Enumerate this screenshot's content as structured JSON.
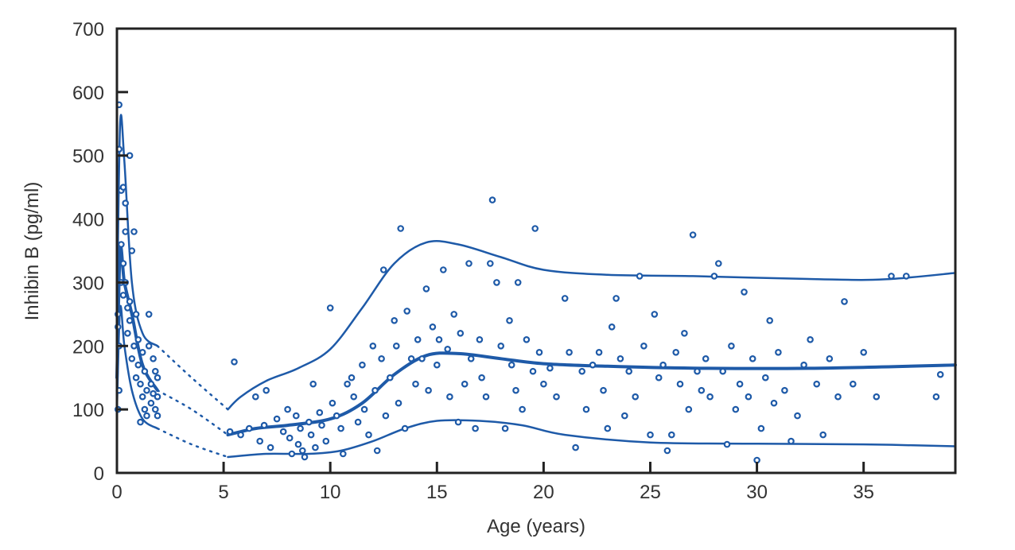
{
  "chart_data": {
    "type": "scatter",
    "title": "",
    "xlabel": "Age (years)",
    "ylabel": "Inhibin B (pg/ml)",
    "xlim": [
      0,
      39.3
    ],
    "ylim": [
      0,
      700
    ],
    "xticks": [
      0,
      5,
      10,
      15,
      20,
      25,
      30,
      35
    ],
    "yticks": [
      0,
      100,
      200,
      300,
      400,
      500,
      600,
      700
    ],
    "grid": false,
    "colors": {
      "series": "#1e5aa8",
      "axis": "#222222",
      "text": "#333333"
    },
    "points": [
      [
        0.1,
        580
      ],
      [
        0.1,
        510
      ],
      [
        0.2,
        445
      ],
      [
        0.3,
        450
      ],
      [
        0.4,
        425
      ],
      [
        0.6,
        500
      ],
      [
        0.7,
        350
      ],
      [
        0.8,
        380
      ],
      [
        0.05,
        250
      ],
      [
        0.1,
        200
      ],
      [
        0.1,
        130
      ],
      [
        0.2,
        300
      ],
      [
        0.2,
        360
      ],
      [
        0.3,
        330
      ],
      [
        0.3,
        280
      ],
      [
        0.4,
        300
      ],
      [
        0.5,
        260
      ],
      [
        0.5,
        220
      ],
      [
        0.6,
        240
      ],
      [
        0.7,
        180
      ],
      [
        0.8,
        200
      ],
      [
        0.9,
        150
      ],
      [
        1.0,
        170
      ],
      [
        1.1,
        140
      ],
      [
        1.2,
        120
      ],
      [
        1.3,
        160
      ],
      [
        1.4,
        130
      ],
      [
        1.5,
        250
      ],
      [
        1.6,
        110
      ],
      [
        1.7,
        180
      ],
      [
        1.8,
        100
      ],
      [
        1.9,
        90
      ],
      [
        1.0,
        210
      ],
      [
        1.2,
        190
      ],
      [
        1.4,
        90
      ],
      [
        1.6,
        140
      ],
      [
        1.8,
        160
      ],
      [
        1.9,
        120
      ],
      [
        0.9,
        250
      ],
      [
        1.3,
        100
      ],
      [
        0.05,
        100
      ],
      [
        0.05,
        230
      ],
      [
        0.4,
        380
      ],
      [
        0.6,
        270
      ],
      [
        1.1,
        80
      ],
      [
        1.5,
        200
      ],
      [
        1.7,
        125
      ],
      [
        1.9,
        150
      ],
      [
        5.5,
        175
      ],
      [
        5.3,
        65
      ],
      [
        5.8,
        60
      ],
      [
        6.2,
        70
      ],
      [
        6.5,
        120
      ],
      [
        6.7,
        50
      ],
      [
        6.9,
        75
      ],
      [
        7.0,
        130
      ],
      [
        7.2,
        40
      ],
      [
        7.5,
        85
      ],
      [
        7.8,
        65
      ],
      [
        8.0,
        100
      ],
      [
        8.1,
        55
      ],
      [
        8.2,
        30
      ],
      [
        8.4,
        90
      ],
      [
        8.5,
        45
      ],
      [
        8.6,
        70
      ],
      [
        8.7,
        35
      ],
      [
        8.8,
        25
      ],
      [
        9.0,
        80
      ],
      [
        9.1,
        60
      ],
      [
        9.2,
        140
      ],
      [
        9.3,
        40
      ],
      [
        9.5,
        95
      ],
      [
        9.6,
        75
      ],
      [
        9.8,
        50
      ],
      [
        10.0,
        260
      ],
      [
        10.1,
        110
      ],
      [
        10.3,
        90
      ],
      [
        10.5,
        70
      ],
      [
        10.6,
        30
      ],
      [
        10.8,
        140
      ],
      [
        11.0,
        150
      ],
      [
        11.1,
        120
      ],
      [
        11.3,
        80
      ],
      [
        11.5,
        170
      ],
      [
        11.6,
        100
      ],
      [
        11.8,
        60
      ],
      [
        12.0,
        200
      ],
      [
        12.1,
        130
      ],
      [
        12.2,
        35
      ],
      [
        12.4,
        180
      ],
      [
        12.5,
        320
      ],
      [
        12.6,
        90
      ],
      [
        12.8,
        150
      ],
      [
        13.0,
        240
      ],
      [
        13.1,
        200
      ],
      [
        13.2,
        110
      ],
      [
        13.3,
        385
      ],
      [
        13.5,
        70
      ],
      [
        13.6,
        255
      ],
      [
        13.8,
        180
      ],
      [
        14.0,
        140
      ],
      [
        14.1,
        210
      ],
      [
        14.3,
        180
      ],
      [
        14.5,
        290
      ],
      [
        14.6,
        130
      ],
      [
        14.8,
        230
      ],
      [
        15.0,
        170
      ],
      [
        15.1,
        210
      ],
      [
        15.3,
        320
      ],
      [
        15.5,
        195
      ],
      [
        15.6,
        120
      ],
      [
        15.8,
        250
      ],
      [
        16.0,
        80
      ],
      [
        16.1,
        220
      ],
      [
        16.3,
        140
      ],
      [
        16.5,
        330
      ],
      [
        16.6,
        180
      ],
      [
        16.8,
        70
      ],
      [
        17.0,
        210
      ],
      [
        17.1,
        150
      ],
      [
        17.3,
        120
      ],
      [
        17.5,
        330
      ],
      [
        17.6,
        430
      ],
      [
        17.8,
        300
      ],
      [
        18.0,
        200
      ],
      [
        18.2,
        70
      ],
      [
        18.4,
        240
      ],
      [
        18.5,
        170
      ],
      [
        18.7,
        130
      ],
      [
        18.8,
        300
      ],
      [
        19.0,
        100
      ],
      [
        19.2,
        210
      ],
      [
        19.5,
        160
      ],
      [
        19.6,
        385
      ],
      [
        19.8,
        190
      ],
      [
        20.0,
        140
      ],
      [
        20.3,
        165
      ],
      [
        20.6,
        120
      ],
      [
        21.0,
        275
      ],
      [
        21.2,
        190
      ],
      [
        21.5,
        40
      ],
      [
        21.8,
        160
      ],
      [
        22.0,
        100
      ],
      [
        22.3,
        170
      ],
      [
        22.6,
        190
      ],
      [
        22.8,
        130
      ],
      [
        23.0,
        70
      ],
      [
        23.2,
        230
      ],
      [
        23.4,
        275
      ],
      [
        23.6,
        180
      ],
      [
        23.8,
        90
      ],
      [
        24.0,
        160
      ],
      [
        24.3,
        120
      ],
      [
        24.5,
        310
      ],
      [
        24.7,
        200
      ],
      [
        25.0,
        60
      ],
      [
        25.2,
        250
      ],
      [
        25.4,
        150
      ],
      [
        25.6,
        170
      ],
      [
        25.8,
        35
      ],
      [
        26.0,
        60
      ],
      [
        26.2,
        190
      ],
      [
        26.4,
        140
      ],
      [
        26.6,
        220
      ],
      [
        26.8,
        100
      ],
      [
        27.0,
        375
      ],
      [
        27.2,
        160
      ],
      [
        27.4,
        130
      ],
      [
        27.6,
        180
      ],
      [
        27.8,
        120
      ],
      [
        28.0,
        310
      ],
      [
        28.2,
        330
      ],
      [
        28.4,
        160
      ],
      [
        28.6,
        45
      ],
      [
        28.8,
        200
      ],
      [
        29.0,
        100
      ],
      [
        29.2,
        140
      ],
      [
        29.4,
        285
      ],
      [
        29.6,
        120
      ],
      [
        29.8,
        180
      ],
      [
        30.0,
        20
      ],
      [
        30.2,
        70
      ],
      [
        30.4,
        150
      ],
      [
        30.6,
        240
      ],
      [
        30.8,
        110
      ],
      [
        31.0,
        190
      ],
      [
        31.3,
        130
      ],
      [
        31.6,
        50
      ],
      [
        31.9,
        90
      ],
      [
        32.2,
        170
      ],
      [
        32.5,
        210
      ],
      [
        32.8,
        140
      ],
      [
        33.1,
        60
      ],
      [
        33.4,
        180
      ],
      [
        33.8,
        120
      ],
      [
        34.1,
        270
      ],
      [
        34.5,
        140
      ],
      [
        35.0,
        190
      ],
      [
        35.6,
        120
      ],
      [
        36.3,
        310
      ],
      [
        37.0,
        310
      ],
      [
        38.4,
        120
      ],
      [
        38.6,
        155
      ]
    ],
    "curves": {
      "upper": [
        [
          0.0,
          240
        ],
        [
          0.15,
          550
        ],
        [
          0.35,
          490
        ],
        [
          0.7,
          300
        ],
        [
          1.2,
          220
        ],
        [
          1.9,
          200
        ],
        [
          3.5,
          150
        ],
        [
          5.2,
          100
        ],
        [
          5.8,
          120
        ],
        [
          7.0,
          145
        ],
        [
          8.5,
          165
        ],
        [
          10.0,
          195
        ],
        [
          11.5,
          260
        ],
        [
          13.0,
          330
        ],
        [
          14.5,
          363
        ],
        [
          16.0,
          360
        ],
        [
          18.0,
          340
        ],
        [
          20.0,
          320
        ],
        [
          23.0,
          312
        ],
        [
          27.0,
          310
        ],
        [
          33.0,
          305
        ],
        [
          36.0,
          305
        ],
        [
          39.3,
          315
        ]
      ],
      "median": [
        [
          0.0,
          150
        ],
        [
          0.15,
          350
        ],
        [
          0.35,
          300
        ],
        [
          0.7,
          250
        ],
        [
          1.2,
          170
        ],
        [
          1.9,
          130
        ],
        [
          3.5,
          100
        ],
        [
          5.2,
          60
        ],
        [
          6.5,
          70
        ],
        [
          8.0,
          75
        ],
        [
          10.0,
          85
        ],
        [
          11.5,
          110
        ],
        [
          13.0,
          155
        ],
        [
          14.5,
          185
        ],
        [
          16.0,
          188
        ],
        [
          18.0,
          180
        ],
        [
          20.0,
          172
        ],
        [
          23.0,
          168
        ],
        [
          27.0,
          165
        ],
        [
          33.0,
          165
        ],
        [
          39.3,
          170
        ]
      ],
      "lower": [
        [
          0.0,
          100
        ],
        [
          0.15,
          260
        ],
        [
          0.35,
          200
        ],
        [
          0.7,
          130
        ],
        [
          1.2,
          85
        ],
        [
          1.9,
          70
        ],
        [
          3.5,
          45
        ],
        [
          5.2,
          25
        ],
        [
          7.0,
          30
        ],
        [
          9.0,
          30
        ],
        [
          10.5,
          35
        ],
        [
          12.0,
          50
        ],
        [
          13.5,
          70
        ],
        [
          15.0,
          82
        ],
        [
          17.0,
          82
        ],
        [
          19.0,
          75
        ],
        [
          21.0,
          60
        ],
        [
          25.0,
          48
        ],
        [
          30.0,
          46
        ],
        [
          35.0,
          45
        ],
        [
          39.3,
          42
        ]
      ],
      "dashed_segment": [
        1.9,
        5.2
      ]
    }
  }
}
